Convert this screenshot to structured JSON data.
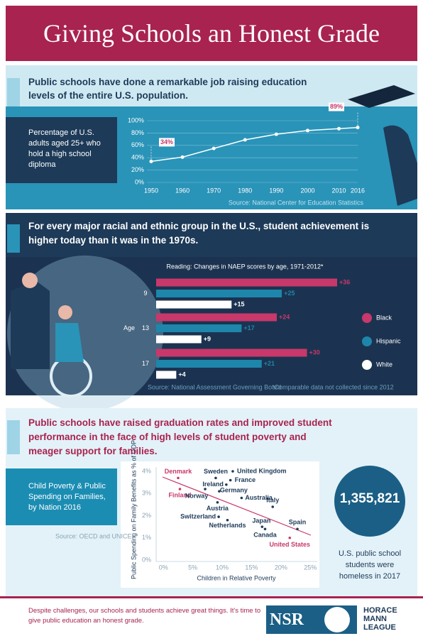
{
  "header": {
    "title": "Giving Schools an Honest Grade"
  },
  "sections": [
    {
      "heading": "Public schools have done a remarkable job raising education levels of the entire U.S. population."
    },
    {
      "heading": "For every major racial and ethnic group in the U.S., student achievement is higher today than it was in the 1970s."
    },
    {
      "heading": "Public schools have raised graduation rates and improved student performance in the face of high levels of student poverty and meager support for families."
    }
  ],
  "chart_data": [
    {
      "type": "line",
      "title": "Percentage of U.S. adults aged 25+ who hold a high school diploma",
      "x": [
        1950,
        1960,
        1970,
        1980,
        1990,
        2000,
        2010,
        2016
      ],
      "values": [
        34,
        41,
        55,
        69,
        78,
        84,
        87,
        89
      ],
      "value_labels": [
        "34%",
        null,
        null,
        null,
        null,
        null,
        null,
        "89%"
      ],
      "color": "#ffffff",
      "xlim": [
        1950,
        2016
      ],
      "xticks": [
        1950,
        1960,
        1970,
        1980,
        1990,
        2000,
        2010,
        2016
      ],
      "ylim": [
        0,
        100
      ],
      "yticks": [
        {
          "value": 0,
          "label": "0%"
        },
        {
          "value": 20,
          "label": "20%"
        },
        {
          "value": 40,
          "label": "40%"
        },
        {
          "value": 60,
          "label": "60%"
        },
        {
          "value": 80,
          "label": "80%"
        },
        {
          "value": 100,
          "label": "100%"
        }
      ],
      "grid": true,
      "source": "Source: National Center for Education Statistics"
    },
    {
      "type": "hbar",
      "title": "Reading: Changes in NAEP scores by age, 1971-2012*",
      "y_label": "Age",
      "categories": [
        "9",
        "13",
        "17"
      ],
      "series": [
        {
          "name": "Black",
          "color": "#c8386a",
          "values": [
            36,
            24,
            30
          ],
          "value_labels": [
            "+36",
            "+24",
            "+30"
          ]
        },
        {
          "name": "Hispanic",
          "color": "#1e86aa",
          "values": [
            25,
            17,
            21
          ],
          "value_labels": [
            "+25",
            "+17",
            "+21"
          ]
        },
        {
          "name": "White",
          "color": "#ffffff",
          "values": [
            15,
            9,
            4
          ],
          "value_labels": [
            "+15",
            "+9",
            "+4"
          ]
        }
      ],
      "legend": "right",
      "source": "Source: National Assessment Governing Board",
      "note": "*Comparable data not collected since 2012"
    },
    {
      "type": "scatter",
      "title": "Child Poverty & Public Spending on Families, by Nation 2016",
      "x_label": "Children in Relative Poverty",
      "y_label": "Public Spending on Family Benefits as % of GDP",
      "labels": [
        "Denmark",
        "Finland",
        "Sweden",
        "United Kingdom",
        "France",
        "Ireland",
        "Germany",
        "Norway",
        "Australia",
        "Austria",
        "Italy",
        "Switzerland",
        "Netherlands",
        "Japan",
        "Spain",
        "Canada",
        "United States"
      ],
      "x": [
        2.5,
        2.8,
        8.9,
        11.8,
        11.4,
        10.7,
        9.5,
        7.1,
        13.3,
        9.2,
        18.6,
        9.4,
        10.9,
        16.8,
        22.8,
        17.3,
        21.5
      ],
      "values": [
        3.7,
        3.2,
        3.7,
        4.0,
        3.6,
        3.4,
        3.1,
        3.2,
        2.8,
        2.6,
        2.4,
        1.95,
        1.8,
        1.5,
        1.4,
        1.4,
        1.0
      ],
      "colors": [
        "#c8386a",
        "#c8386a",
        "#1d3a58",
        "#1d3a58",
        "#1d3a58",
        "#1d3a58",
        "#1d3a58",
        "#1d3a58",
        "#1d3a58",
        "#1d3a58",
        "#1d3a58",
        "#1d3a58",
        "#1d3a58",
        "#1d3a58",
        "#1d3a58",
        "#1d3a58",
        "#c8386a"
      ],
      "xlim": [
        -1,
        26
      ],
      "xticks": [
        {
          "value": 0,
          "label": "0%"
        },
        {
          "value": 5,
          "label": "5%"
        },
        {
          "value": 10,
          "label": "10%"
        },
        {
          "value": 15,
          "label": "15%"
        },
        {
          "value": 20,
          "label": "20%"
        },
        {
          "value": 25,
          "label": "25%"
        }
      ],
      "ylim": [
        0,
        4
      ],
      "yticks": [
        {
          "value": 0,
          "label": "0%"
        },
        {
          "value": 1,
          "label": "1%"
        },
        {
          "value": 2,
          "label": "2%"
        },
        {
          "value": 3,
          "label": "3%"
        },
        {
          "value": 4,
          "label": "4%"
        }
      ],
      "source": "Source: OECD and UNICEF"
    }
  ],
  "stat": {
    "value": "1,355,821",
    "caption": "U.S. public school students were homeless in 2017"
  },
  "footer": {
    "text": "Despite challenges, our schools and students achieve great things. It's time to give public education an honest grade.",
    "logos": [
      "NSR",
      "HORACE MANN LEAGUE"
    ]
  }
}
